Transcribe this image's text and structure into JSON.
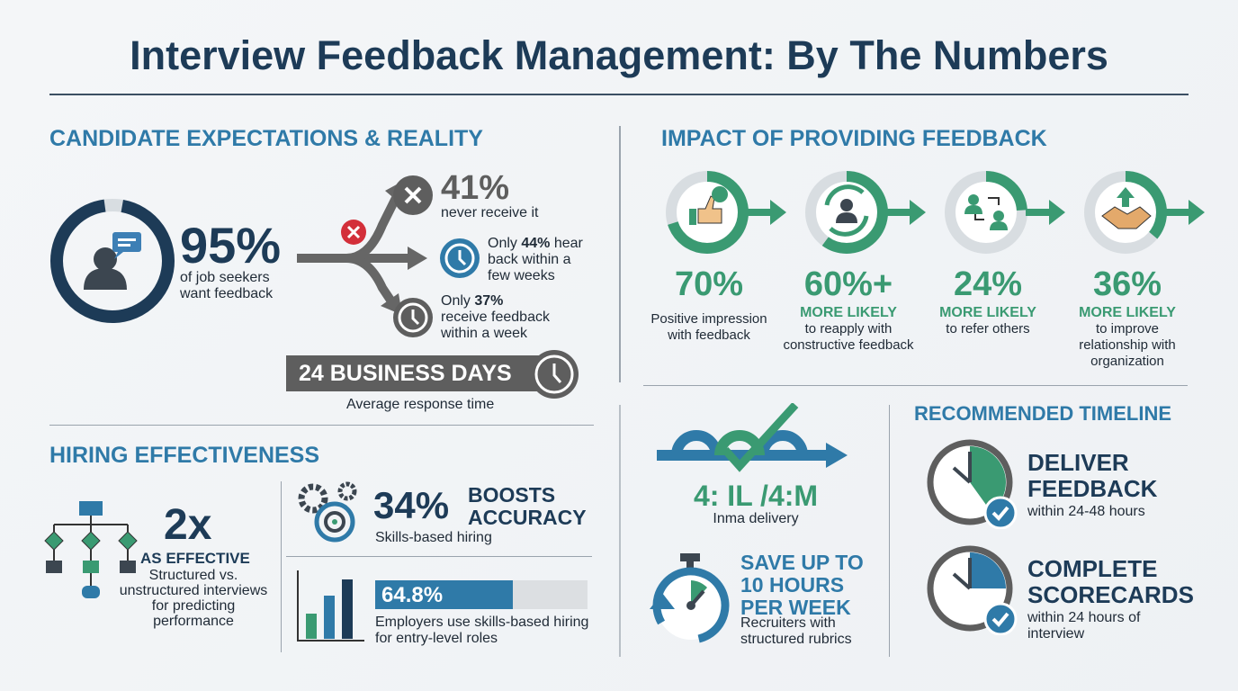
{
  "title": "Interview Feedback Management: By The Numbers",
  "colors": {
    "navy": "#1d3b57",
    "blue": "#2f7aa8",
    "green": "#3a9a72",
    "gray": "#5e5e5e",
    "red": "#d32f3a"
  },
  "candidate": {
    "heading": "CANDIDATE EXPECTATIONS & REALITY",
    "main_value": "95%",
    "main_label": [
      "of job seekers",
      "want feedback"
    ],
    "ring_fill_percent": 95,
    "outcomes": [
      {
        "value": "41%",
        "label": "never receive it",
        "icon": "x-circle-icon"
      },
      {
        "prefix": "Only ",
        "value": "44%",
        "suffix": " hear",
        "rest": [
          "back within a",
          "few weeks"
        ],
        "icon": "clock-icon"
      },
      {
        "prefix": "Only ",
        "value": "37%",
        "rest": [
          "receive feedback",
          "within a week"
        ],
        "icon": "clock-icon"
      }
    ],
    "response_time": "24 BUSINESS DAYS",
    "response_label": "Average response time"
  },
  "hiring": {
    "heading": "HIRING EFFECTIVENESS",
    "multiplier": "2x",
    "multiplier_label": "AS EFFECTIVE",
    "multiplier_desc": [
      "Structured vs.",
      "unstructured interviews",
      "for predicting",
      "performance"
    ],
    "accuracy_value": "34%",
    "accuracy_label": [
      "BOOSTS",
      "ACCURACY"
    ],
    "accuracy_desc": "Skills-based hiring",
    "employers_value": "64.8%",
    "employers_percent": 64.8,
    "employers_desc": [
      "Employers use skills-based hiring",
      "for entry-level roles"
    ]
  },
  "impact": {
    "heading": "IMPACT OF PROVIDING FEEDBACK",
    "items": [
      {
        "value": "70%",
        "tag": "",
        "desc": [
          "Positive impression",
          "with feedback"
        ],
        "icon": "thumbs-up-icon",
        "fill_percent": 70
      },
      {
        "value": "60%+",
        "tag": "MORE LIKELY",
        "desc": [
          "to reapply with",
          "constructive feedback"
        ],
        "icon": "reapply-cycle-icon",
        "fill_percent": 60
      },
      {
        "value": "24%",
        "tag": "MORE LIKELY",
        "desc": [
          "to refer others"
        ],
        "icon": "referral-icon",
        "fill_percent": 24
      },
      {
        "value": "36%",
        "tag": "MORE LIKELY",
        "desc": [
          "to improve",
          "relationship with",
          "organization"
        ],
        "icon": "handshake-icon",
        "fill_percent": 36
      }
    ]
  },
  "delivery": {
    "value": "4: IL /4:M",
    "label": "Inma delivery"
  },
  "save": {
    "headline": [
      "SAVE UP TO",
      "10 HOURS",
      "PER WEEK"
    ],
    "desc": [
      "Recruiters with",
      "structured rubrics"
    ]
  },
  "timeline": {
    "heading": "RECOMMENDED TIMELINE",
    "items": [
      {
        "title": [
          "DELIVER",
          "FEEDBACK"
        ],
        "desc": [
          "within 24-48 hours"
        ]
      },
      {
        "title": [
          "COMPLETE",
          "SCORECARDS"
        ],
        "desc": [
          "within 24 hours of",
          "interview"
        ]
      }
    ]
  }
}
